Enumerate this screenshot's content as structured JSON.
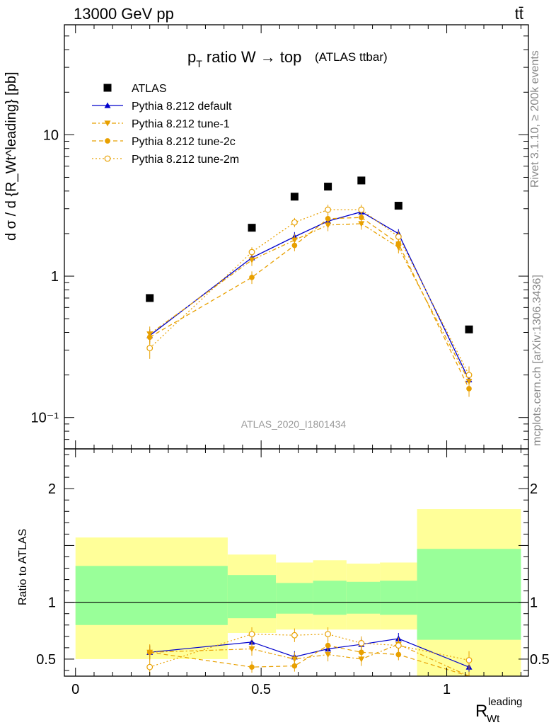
{
  "header": {
    "energy_label": "13000 GeV pp",
    "process_label": "tt̄"
  },
  "side_labels": {
    "rivet": "Rivet 3.1.10, ≥ 200k events",
    "mcplots": "mcplots.cern.ch [arXiv:1306.3436]"
  },
  "chart_data": [
    {
      "type": "scatter",
      "panel": "main",
      "title_main": "p",
      "title_sub": "T",
      "title_rest": " ratio W → top",
      "title_small": "(ATLAS ttbar)",
      "watermark": "ATLAS_2020_I1801434",
      "ylabel": "d σ / d {R_Wt^leading} [pb]",
      "yscale": "log",
      "ylim": [
        0.06,
        60
      ],
      "xlim": [
        -0.03,
        1.22
      ],
      "y_tick_labels": [
        "10⁻¹",
        "1",
        "10"
      ],
      "legend_position": "top-left",
      "x": [
        0.2,
        0.475,
        0.59,
        0.68,
        0.77,
        0.87,
        1.06
      ],
      "series": [
        {
          "name": "ATLAS",
          "marker": "square",
          "color": "#000000",
          "values": [
            0.7,
            2.2,
            3.65,
            4.3,
            4.75,
            3.15,
            0.42
          ]
        },
        {
          "name": "Pythia 8.212 default",
          "marker": "triangle-up",
          "line": "solid",
          "color": "#0000cc",
          "values": [
            0.38,
            1.35,
            1.9,
            2.45,
            2.85,
            2.0,
            0.185
          ],
          "err": [
            0.04,
            0.1,
            0.15,
            0.2,
            0.2,
            0.15,
            0.02
          ]
        },
        {
          "name": "Pythia 8.212 tune-1",
          "marker": "triangle-down",
          "line": "dashdot",
          "color": "#e8a000",
          "values": [
            0.39,
            1.3,
            1.8,
            2.3,
            2.35,
            1.6,
            0.18
          ],
          "err": [
            0.05,
            0.12,
            0.18,
            0.22,
            0.22,
            0.15,
            0.03
          ]
        },
        {
          "name": "Pythia 8.212 tune-2c",
          "marker": "circle",
          "line": "dashed",
          "color": "#e8a000",
          "values": [
            0.37,
            0.98,
            1.65,
            2.55,
            2.6,
            1.7,
            0.16
          ],
          "err": [
            0.04,
            0.1,
            0.15,
            0.2,
            0.22,
            0.15,
            0.02
          ]
        },
        {
          "name": "Pythia 8.212 tune-2m",
          "marker": "open-circle",
          "line": "dotted",
          "color": "#e8a000",
          "values": [
            0.31,
            1.48,
            2.4,
            2.95,
            2.95,
            1.9,
            0.2
          ],
          "err": [
            0.05,
            0.12,
            0.18,
            0.25,
            0.25,
            0.18,
            0.03
          ]
        }
      ]
    },
    {
      "type": "scatter",
      "panel": "ratio",
      "ylabel": "Ratio to ATLAS",
      "xlabel_main": "R",
      "xlabel_sub": "Wt",
      "xlabel_sup": "leading",
      "ylim": [
        0.35,
        2.35
      ],
      "xlim": [
        -0.03,
        1.22
      ],
      "x_tick_labels": [
        "0",
        "0.5",
        "1"
      ],
      "y_tick_labels": [
        "0.5",
        "1",
        "2"
      ],
      "band_edges": [
        0.0,
        0.41,
        0.54,
        0.64,
        0.73,
        0.82,
        0.92,
        1.2
      ],
      "band_outer_low": [
        0.5,
        0.73,
        0.76,
        0.76,
        0.76,
        0.76,
        0.3
      ],
      "band_outer_high": [
        1.57,
        1.42,
        1.35,
        1.37,
        1.34,
        1.35,
        1.82
      ],
      "band_inner_low": [
        0.8,
        0.86,
        0.9,
        0.89,
        0.9,
        0.89,
        0.67
      ],
      "band_inner_high": [
        1.32,
        1.24,
        1.17,
        1.19,
        1.18,
        1.19,
        1.47
      ],
      "x": [
        0.2,
        0.475,
        0.59,
        0.68,
        0.77,
        0.87,
        1.06
      ],
      "series": [
        {
          "name": "Pythia 8.212 default",
          "color": "#0000cc",
          "values": [
            0.56,
            0.65,
            0.52,
            0.59,
            0.63,
            0.68,
            0.43
          ],
          "err": [
            0.06,
            0.05,
            0.05,
            0.05,
            0.05,
            0.05,
            0.05
          ]
        },
        {
          "name": "Pythia 8.212 tune-1",
          "color": "#e8a000",
          "values": [
            0.56,
            0.59,
            0.5,
            0.54,
            0.5,
            0.63,
            0.33
          ],
          "err": [
            0.07,
            0.06,
            0.06,
            0.06,
            0.06,
            0.06,
            0.06
          ]
        },
        {
          "name": "Pythia 8.212 tune-2c",
          "color": "#e8a000",
          "values": [
            0.56,
            0.43,
            0.44,
            0.62,
            0.56,
            0.54,
            0.33
          ],
          "err": [
            0.06,
            0.05,
            0.05,
            0.05,
            0.05,
            0.05,
            0.05
          ]
        },
        {
          "name": "Pythia 8.212 tune-2m",
          "color": "#e8a000",
          "values": [
            0.43,
            0.72,
            0.71,
            0.72,
            0.64,
            0.62,
            0.49
          ],
          "err": [
            0.07,
            0.06,
            0.06,
            0.06,
            0.06,
            0.06,
            0.08
          ]
        }
      ]
    }
  ]
}
